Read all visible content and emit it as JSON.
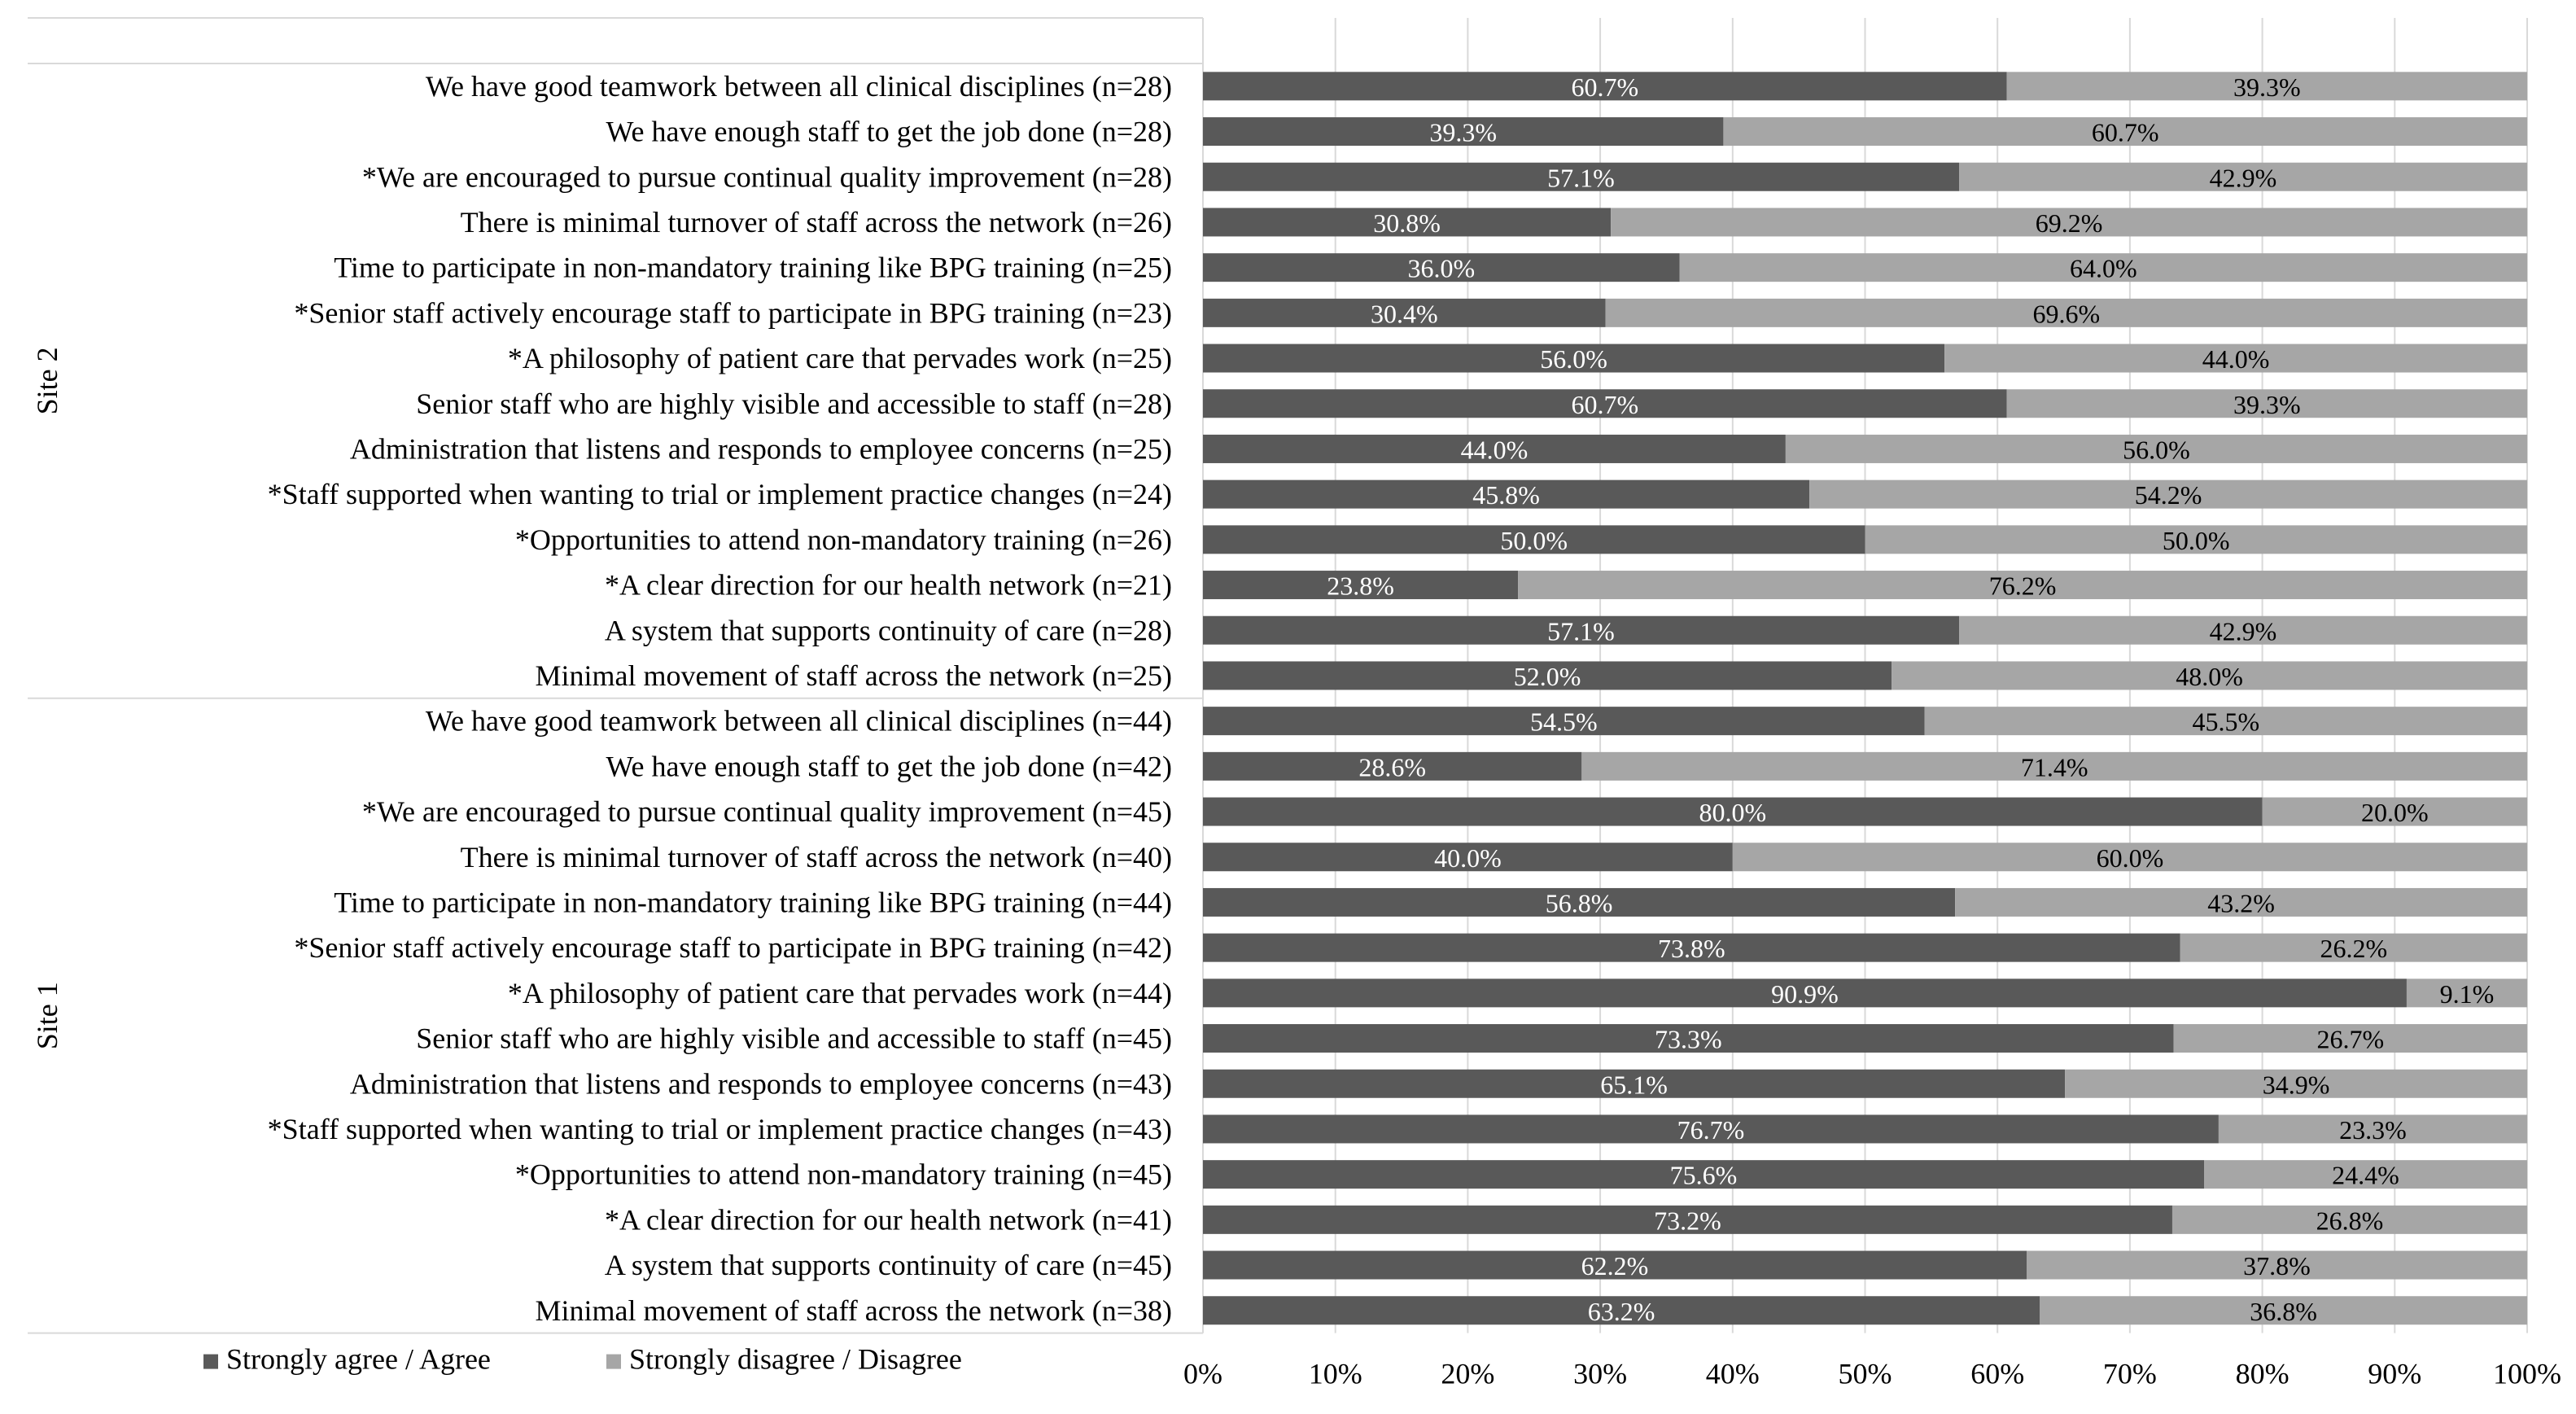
{
  "chart_data": {
    "type": "bar",
    "orientation": "horizontal",
    "stacked": true,
    "title": "",
    "xlabel": "",
    "ylabel": "",
    "xlim": [
      0,
      100
    ],
    "x_ticks": [
      "0%",
      "10%",
      "20%",
      "30%",
      "40%",
      "50%",
      "60%",
      "70%",
      "80%",
      "90%",
      "100%"
    ],
    "grid": true,
    "legend_position": "bottom-left",
    "colors": {
      "agree": "#595959",
      "disagree": "#a6a6a6",
      "gridline": "#d9d9d9",
      "label_on_bar": "#ffffff",
      "text": "#000000"
    },
    "series": [
      {
        "name": "Strongly agree / Agree",
        "key": "agree"
      },
      {
        "name": "Strongly disagree / Disagree",
        "key": "disagree"
      }
    ],
    "groups": [
      {
        "name": "Site 2",
        "rows": [
          {
            "label": "We have good teamwork between all clinical disciplines (n=28)",
            "agree": 60.7,
            "disagree": 39.3,
            "agree_label": "60.7%",
            "disagree_label": "39.3%"
          },
          {
            "label": "We have enough staff to get the job done (n=28)",
            "agree": 39.3,
            "disagree": 60.7,
            "agree_label": "39.3%",
            "disagree_label": "60.7%"
          },
          {
            "label": "*We are encouraged to pursue continual quality improvement (n=28)",
            "agree": 57.1,
            "disagree": 42.9,
            "agree_label": "57.1%",
            "disagree_label": "42.9%"
          },
          {
            "label": "There is minimal turnover of staff across the network (n=26)",
            "agree": 30.8,
            "disagree": 69.2,
            "agree_label": "30.8%",
            "disagree_label": "69.2%"
          },
          {
            "label": "Time to participate in non-mandatory training like BPG training (n=25)",
            "agree": 36.0,
            "disagree": 64.0,
            "agree_label": "36.0%",
            "disagree_label": "64.0%"
          },
          {
            "label": "*Senior staff actively encourage staff to participate in BPG training (n=23)",
            "agree": 30.4,
            "disagree": 69.6,
            "agree_label": "30.4%",
            "disagree_label": "69.6%"
          },
          {
            "label": "*A philosophy of patient care that pervades work (n=25)",
            "agree": 56.0,
            "disagree": 44.0,
            "agree_label": "56.0%",
            "disagree_label": "44.0%"
          },
          {
            "label": "Senior staff who are highly visible and accessible to staff (n=28)",
            "agree": 60.7,
            "disagree": 39.3,
            "agree_label": "60.7%",
            "disagree_label": "39.3%"
          },
          {
            "label": "Administration that listens and responds to employee concerns (n=25)",
            "agree": 44.0,
            "disagree": 56.0,
            "agree_label": "44.0%",
            "disagree_label": "56.0%"
          },
          {
            "label": "*Staff supported when wanting to trial or implement practice changes (n=24)",
            "agree": 45.8,
            "disagree": 54.2,
            "agree_label": "45.8%",
            "disagree_label": "54.2%"
          },
          {
            "label": "*Opportunities to attend non-mandatory training (n=26)",
            "agree": 50.0,
            "disagree": 50.0,
            "agree_label": "50.0%",
            "disagree_label": "50.0%"
          },
          {
            "label": "*A clear direction for our health network (n=21)",
            "agree": 23.8,
            "disagree": 76.2,
            "agree_label": "23.8%",
            "disagree_label": "76.2%"
          },
          {
            "label": "A system that supports continuity of care (n=28)",
            "agree": 57.1,
            "disagree": 42.9,
            "agree_label": "57.1%",
            "disagree_label": "42.9%"
          },
          {
            "label": "Minimal movement of staff across the network (n=25)",
            "agree": 52.0,
            "disagree": 48.0,
            "agree_label": "52.0%",
            "disagree_label": "48.0%"
          }
        ]
      },
      {
        "name": "Site 1",
        "rows": [
          {
            "label": "We have good teamwork between all clinical disciplines (n=44)",
            "agree": 54.5,
            "disagree": 45.5,
            "agree_label": "54.5%",
            "disagree_label": "45.5%"
          },
          {
            "label": "We have enough staff to get the job done (n=42)",
            "agree": 28.6,
            "disagree": 71.4,
            "agree_label": "28.6%",
            "disagree_label": "71.4%"
          },
          {
            "label": "*We are encouraged to pursue continual quality improvement (n=45)",
            "agree": 80.0,
            "disagree": 20.0,
            "agree_label": "80.0%",
            "disagree_label": "20.0%"
          },
          {
            "label": "There is minimal turnover of staff across the network (n=40)",
            "agree": 40.0,
            "disagree": 60.0,
            "agree_label": "40.0%",
            "disagree_label": "60.0%"
          },
          {
            "label": "Time to participate in non-mandatory training like BPG training (n=44)",
            "agree": 56.8,
            "disagree": 43.2,
            "agree_label": "56.8%",
            "disagree_label": "43.2%"
          },
          {
            "label": "*Senior staff actively encourage staff to participate in BPG training (n=42)",
            "agree": 73.8,
            "disagree": 26.2,
            "agree_label": "73.8%",
            "disagree_label": "26.2%"
          },
          {
            "label": "*A philosophy of patient care that pervades work (n=44)",
            "agree": 90.9,
            "disagree": 9.1,
            "agree_label": "90.9%",
            "disagree_label": "9.1%"
          },
          {
            "label": "Senior staff who are highly visible and accessible to staff (n=45)",
            "agree": 73.3,
            "disagree": 26.7,
            "agree_label": "73.3%",
            "disagree_label": "26.7%"
          },
          {
            "label": "Administration that listens and responds to employee concerns (n=43)",
            "agree": 65.1,
            "disagree": 34.9,
            "agree_label": "65.1%",
            "disagree_label": "34.9%"
          },
          {
            "label": "*Staff supported when wanting to trial or implement practice changes (n=43)",
            "agree": 76.7,
            "disagree": 23.3,
            "agree_label": "76.7%",
            "disagree_label": "23.3%"
          },
          {
            "label": "*Opportunities to attend non-mandatory training (n=45)",
            "agree": 75.6,
            "disagree": 24.4,
            "agree_label": "75.6%",
            "disagree_label": "24.4%"
          },
          {
            "label": "*A clear direction for our health network (n=41)",
            "agree": 73.2,
            "disagree": 26.8,
            "agree_label": "73.2%",
            "disagree_label": "26.8%"
          },
          {
            "label": "A system that supports continuity of care (n=45)",
            "agree": 62.2,
            "disagree": 37.8,
            "agree_label": "62.2%",
            "disagree_label": "37.8%"
          },
          {
            "label": "Minimal movement of staff across the network (n=38)",
            "agree": 63.2,
            "disagree": 36.8,
            "agree_label": "63.2%",
            "disagree_label": "36.8%"
          }
        ]
      }
    ]
  }
}
